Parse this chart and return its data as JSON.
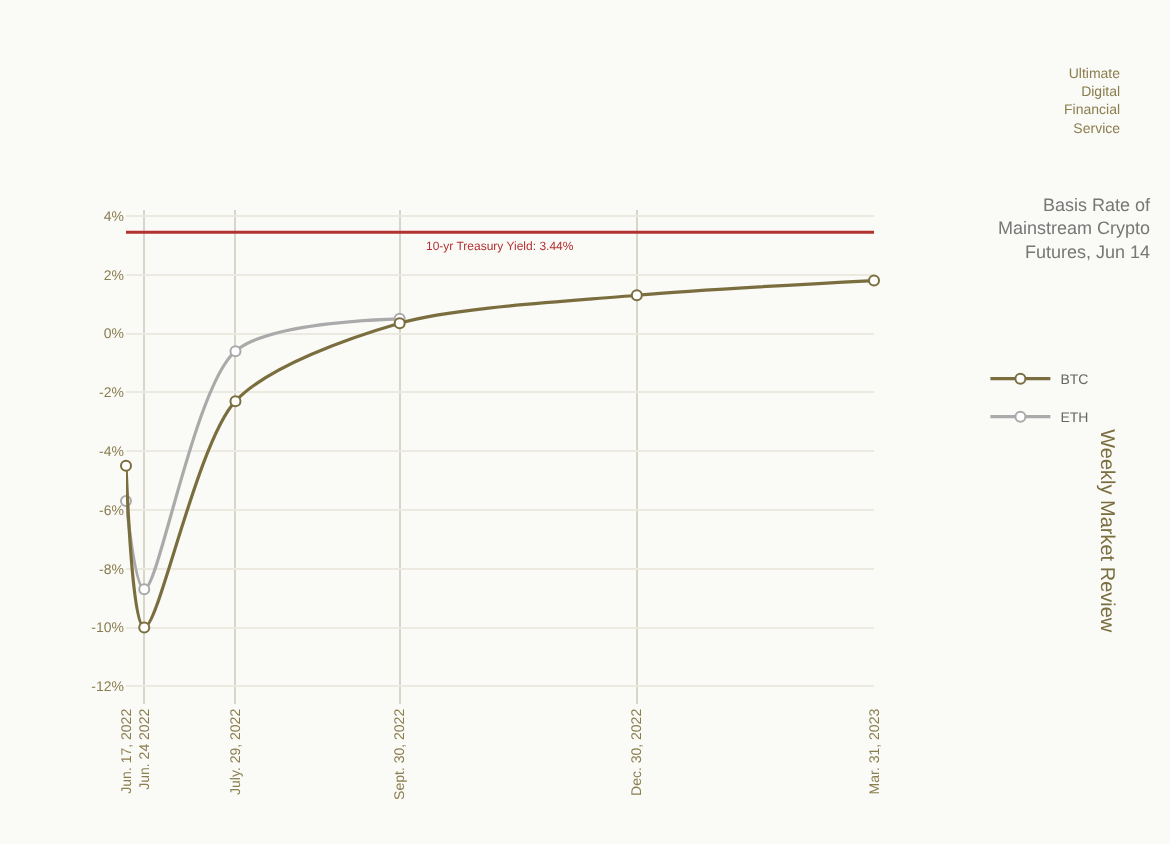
{
  "chart_data": {
    "type": "line",
    "title": "Basis Rate of Mainstream Crypto Futures, Jun 14",
    "annotations": [
      "Ultimate Digital Financial Service",
      "Weekly Market Review"
    ],
    "x": [
      "2022-06-17",
      "2022-06-24",
      "2022-07-29",
      "2022-09-30",
      "2022-12-30",
      "2023-03-31"
    ],
    "series": [
      {
        "name": "BTC",
        "color": "#7a6e3f",
        "values": [
          -4.5,
          -10.0,
          -2.3,
          0.35,
          1.3,
          1.8
        ]
      },
      {
        "name": "ETH",
        "color": "#aaaaaa",
        "values": [
          -5.7,
          -8.7,
          -0.6,
          0.5,
          null,
          null
        ]
      }
    ],
    "xlim": [
      "2022-06-17",
      "2023-03-31"
    ],
    "xticks": [
      {
        "value": "2022-06-17",
        "label": "Jun. 17, 2022"
      },
      {
        "value": "2022-06-24",
        "label": "Jun. 24 2022"
      },
      {
        "value": "2022-07-29",
        "label": "July. 29, 2022"
      },
      {
        "value": "2022-09-30",
        "label": "Sept. 30, 2022"
      },
      {
        "value": "2022-12-30",
        "label": "Dec. 30, 2022"
      },
      {
        "value": "2023-03-31",
        "label": "Mar. 31, 2023"
      }
    ],
    "ylim": [
      -12.6,
      4.2
    ],
    "yticks": [
      {
        "value": 4,
        "label": "4%"
      },
      {
        "value": 2,
        "label": "2%"
      },
      {
        "value": 0,
        "label": "0%"
      },
      {
        "value": -2,
        "label": "-2%"
      },
      {
        "value": -4,
        "label": "-4%"
      },
      {
        "value": -6,
        "label": "-6%"
      },
      {
        "value": -8,
        "label": "-8%"
      },
      {
        "value": -10,
        "label": "-10%"
      },
      {
        "value": -12,
        "label": "-12%"
      }
    ],
    "ref_lines": [
      {
        "axis": "y",
        "value": 3.44,
        "label": "10-yr Treasury Yield: 3.44%",
        "color": "#b23232"
      }
    ],
    "grid": true,
    "legend": "right",
    "marker": "circle",
    "line_style": "solid"
  }
}
